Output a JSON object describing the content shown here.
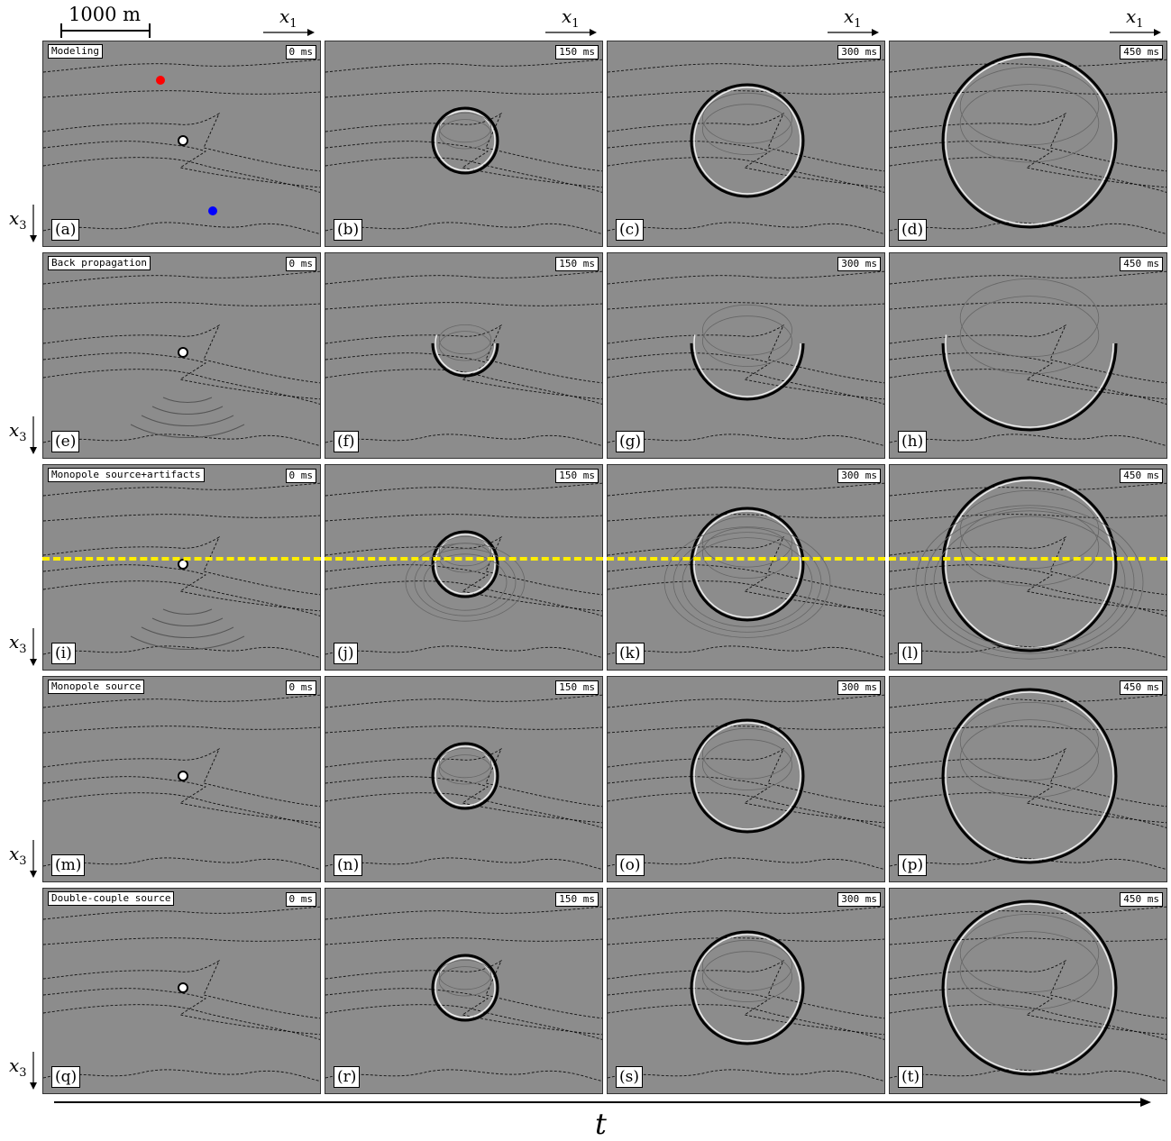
{
  "scale_bar": "1000 m",
  "axis_horizontal": "x1",
  "axis_vertical": "x3",
  "time_axis": "t",
  "time_labels": [
    "0 ms",
    "150 ms",
    "300 ms",
    "450 ms"
  ],
  "rows": [
    {
      "title": "Modeling",
      "letters": [
        "(a)",
        "(b)",
        "(c)",
        "(d)"
      ]
    },
    {
      "title": "Back propagation",
      "letters": [
        "(e)",
        "(f)",
        "(g)",
        "(h)"
      ]
    },
    {
      "title": "Monopole source+artifacts",
      "letters": [
        "(i)",
        "(j)",
        "(k)",
        "(l)"
      ]
    },
    {
      "title": "Monopole source",
      "letters": [
        "(m)",
        "(n)",
        "(o)",
        "(p)"
      ]
    },
    {
      "title": "Double-couple source",
      "letters": [
        "(q)",
        "(r)",
        "(s)",
        "(t)"
      ]
    }
  ],
  "colors": {
    "background": "#8c8c8c",
    "receiver_red": "#ff0000",
    "receiver_blue": "#0000ff",
    "dashed_line_yellow": "#ffee00"
  }
}
